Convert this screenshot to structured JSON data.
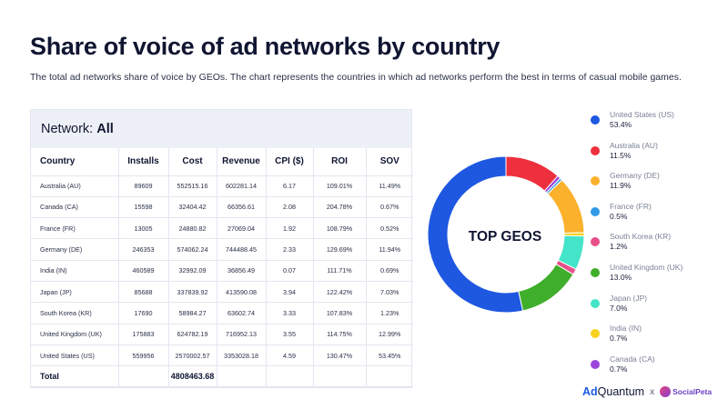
{
  "header": {
    "title": "Share of voice of ad networks by country",
    "subtitle": "The total ad networks share of voice by GEOs. The chart represents the countries in which ad networks perform the best in terms of casual mobile games."
  },
  "table": {
    "network_label": "Network:",
    "network_value": "All",
    "columns": [
      "Country",
      "Installs",
      "Cost",
      "Revenue",
      "CPI ($)",
      "ROI",
      "SOV"
    ],
    "rows": [
      [
        "Australia (AU)",
        "89609",
        "552515.16",
        "602281.14",
        "6.17",
        "109.01%",
        "11.49%"
      ],
      [
        "Canada (CA)",
        "15598",
        "32404.42",
        "66356.61",
        "2.08",
        "204.78%",
        "0.67%"
      ],
      [
        "France (FR)",
        "13005",
        "24880.82",
        "27069.04",
        "1.92",
        "108.79%",
        "0.52%"
      ],
      [
        "Germany (DE)",
        "246353",
        "574062.24",
        "744488.45",
        "2.33",
        "129.69%",
        "11.94%"
      ],
      [
        "India (IN)",
        "460589",
        "32992.09",
        "36856.49",
        "0.07",
        "111.71%",
        "0.69%"
      ],
      [
        "Japan (JP)",
        "85688",
        "337839.92",
        "413590.08",
        "3.94",
        "122.42%",
        "7.03%"
      ],
      [
        "South Korea (KR)",
        "17690",
        "58984.27",
        "63602.74",
        "3.33",
        "107.83%",
        "1.23%"
      ],
      [
        "United Kingdom (UK)",
        "175883",
        "624782.19",
        "716952.13",
        "3.55",
        "114.75%",
        "12.99%"
      ],
      [
        "United States (US)",
        "559956",
        "2570002.57",
        "3353028.18",
        "4.59",
        "130.47%",
        "53.45%"
      ]
    ],
    "total": {
      "label": "Total",
      "cost": "4808463.68"
    }
  },
  "chart_data": {
    "type": "pie",
    "variant": "donut",
    "center_label": "TOP GEOS",
    "legend_position": "right",
    "slices": [
      {
        "name": "United States (US)",
        "label": "53.4%",
        "value": 53.4,
        "color": "#1e57e0"
      },
      {
        "name": "Australia (AU)",
        "label": "11.5%",
        "value": 11.5,
        "color": "#ee2f3d"
      },
      {
        "name": "Germany (DE)",
        "label": "11.9%",
        "value": 11.9,
        "color": "#fbb12b"
      },
      {
        "name": "France (FR)",
        "label": "0.5%",
        "value": 0.5,
        "color": "#2f9be8"
      },
      {
        "name": "South Korea (KR)",
        "label": "1.2%",
        "value": 1.2,
        "color": "#e8508a"
      },
      {
        "name": "United Kingdom (UK)",
        "label": "13.0%",
        "value": 13.0,
        "color": "#3fae2a"
      },
      {
        "name": "Japan (JP)",
        "label": "7.0%",
        "value": 7.0,
        "color": "#44e4c8"
      },
      {
        "name": "India (IN)",
        "label": "0.7%",
        "value": 0.7,
        "color": "#f7d21e"
      },
      {
        "name": "Canada (CA)",
        "label": "0.7%",
        "value": 0.7,
        "color": "#9a46dc"
      }
    ],
    "ring_order": [
      "Australia (AU)",
      "Canada (CA)",
      "France (FR)",
      "Germany (DE)",
      "India (IN)",
      "Japan (JP)",
      "South Korea (KR)",
      "United Kingdom (UK)",
      "United States (US)"
    ]
  },
  "branding": {
    "ad": "Ad",
    "quantum": "Quantum",
    "x": "x",
    "partner": "SocialPeta"
  }
}
